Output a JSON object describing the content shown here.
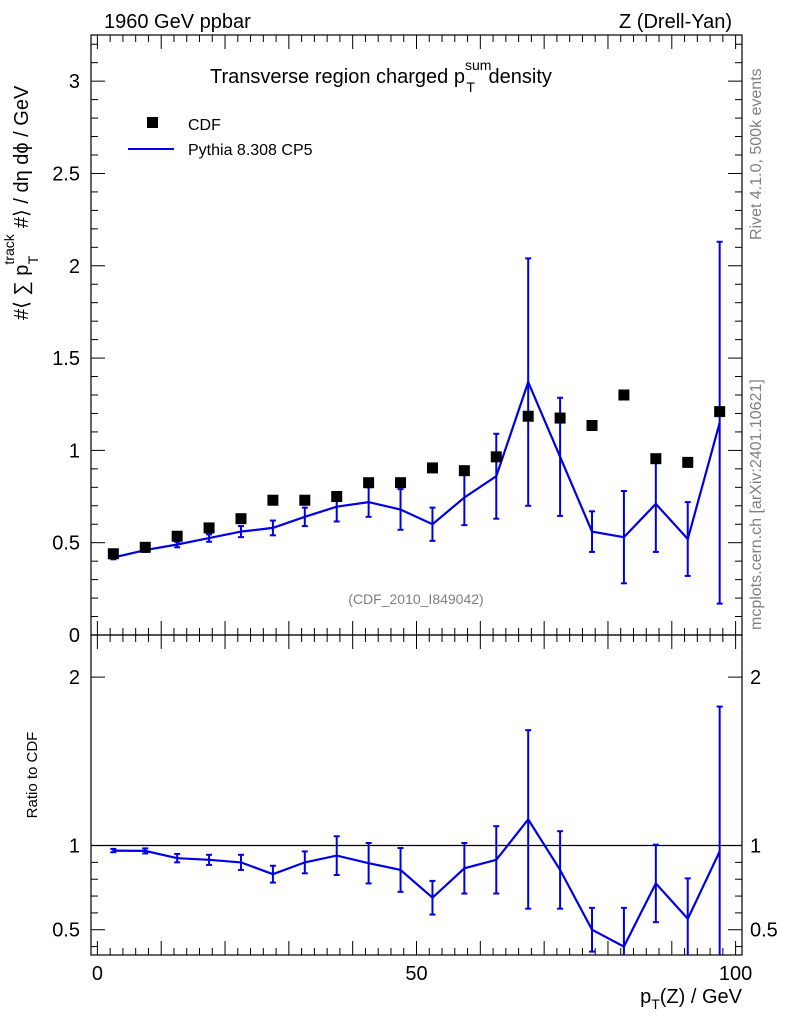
{
  "header": {
    "left": "1960 GeV ppbar",
    "right": "Z (Drell-Yan)"
  },
  "side": {
    "rivet": "Rivet 4.1.0,  500k events",
    "mcplots": "mcplots.cern.ch [arXiv:2401.10621]"
  },
  "analysis_id": "(CDF_2010_I849042)",
  "colors": {
    "mc": "#0000e6",
    "data": "#000000",
    "watermark": "#808080"
  },
  "chart_data": [
    {
      "type": "scatter",
      "title": {
        "main": "Transverse region charged p",
        "sup": "sum",
        "sub": "T",
        "tail": " density"
      },
      "ylabel": {
        "pre": "#⟨ ∑ p",
        "sup": "track",
        "sub": "T",
        "post": " #⟩ / dη dϕ / GeV"
      },
      "xlabel": "",
      "xlim": [
        -1,
        101
      ],
      "ylim": [
        0,
        3.25
      ],
      "yticks": [
        0,
        0.5,
        1,
        1.5,
        2,
        2.5,
        3
      ],
      "ytick_labels": [
        "0",
        "0.5",
        "1",
        "1.5",
        "2",
        "2.5",
        "3"
      ],
      "legend": {
        "position": "top-left",
        "entries": [
          "CDF",
          "Pythia 8.308 CP5"
        ]
      },
      "series": [
        {
          "name": "CDF",
          "style": "markers",
          "x": [
            2.5,
            7.5,
            12.5,
            17.5,
            22.5,
            27.5,
            32.5,
            37.5,
            42.5,
            47.5,
            52.5,
            57.5,
            62.5,
            67.5,
            72.5,
            77.5,
            82.5,
            87.5,
            92.5,
            97.5
          ],
          "y": [
            0.44,
            0.475,
            0.535,
            0.58,
            0.63,
            0.73,
            0.73,
            0.75,
            0.825,
            0.825,
            0.905,
            0.89,
            0.965,
            1.185,
            1.175,
            1.135,
            1.3,
            0.955,
            0.935,
            1.21
          ]
        },
        {
          "name": "Pythia 8.308 CP5",
          "style": "line",
          "x": [
            2.5,
            7.5,
            12.5,
            17.5,
            22.5,
            27.5,
            32.5,
            37.5,
            42.5,
            47.5,
            52.5,
            57.5,
            62.5,
            67.5,
            72.5,
            77.5,
            82.5,
            87.5,
            92.5,
            97.5
          ],
          "y": [
            0.42,
            0.46,
            0.49,
            0.525,
            0.56,
            0.58,
            0.64,
            0.695,
            0.72,
            0.68,
            0.6,
            0.745,
            0.86,
            1.37,
            0.965,
            0.56,
            0.53,
            0.71,
            0.52,
            1.15
          ],
          "err": [
            0.01,
            0.01,
            0.015,
            0.02,
            0.03,
            0.04,
            0.05,
            0.08,
            0.08,
            0.11,
            0.09,
            0.15,
            0.23,
            0.67,
            0.32,
            0.11,
            0.25,
            0.26,
            0.2,
            0.98
          ]
        }
      ]
    },
    {
      "type": "line",
      "title": "",
      "ylabel": "Ratio to CDF",
      "xlabel": "p_T(Z) / GeV",
      "xlim": [
        -1,
        101
      ],
      "ylim": [
        0.35,
        2.25
      ],
      "xticks": [
        0,
        50,
        100
      ],
      "xtick_labels": [
        "0",
        "50",
        "100"
      ],
      "yticks": [
        0.5,
        1,
        2
      ],
      "ytick_labels": [
        "0.5",
        "1",
        "2"
      ],
      "reference_line": 1,
      "series": [
        {
          "name": "Pythia 8.308 CP5 / CDF",
          "x": [
            2.5,
            7.5,
            12.5,
            17.5,
            22.5,
            27.5,
            32.5,
            37.5,
            42.5,
            47.5,
            52.5,
            57.5,
            62.5,
            67.5,
            72.5,
            77.5,
            82.5,
            87.5,
            92.5,
            97.5
          ],
          "y": [
            0.97,
            0.968,
            0.925,
            0.915,
            0.9,
            0.83,
            0.9,
            0.94,
            0.895,
            0.855,
            0.69,
            0.865,
            0.915,
            1.155,
            0.855,
            0.5,
            0.4,
            0.775,
            0.565,
            0.965
          ],
          "err": [
            0.01,
            0.015,
            0.025,
            0.03,
            0.045,
            0.05,
            0.065,
            0.115,
            0.12,
            0.13,
            0.1,
            0.15,
            0.2,
            0.53,
            0.23,
            0.13,
            0.23,
            0.23,
            0.24,
            0.86
          ]
        }
      ]
    }
  ]
}
